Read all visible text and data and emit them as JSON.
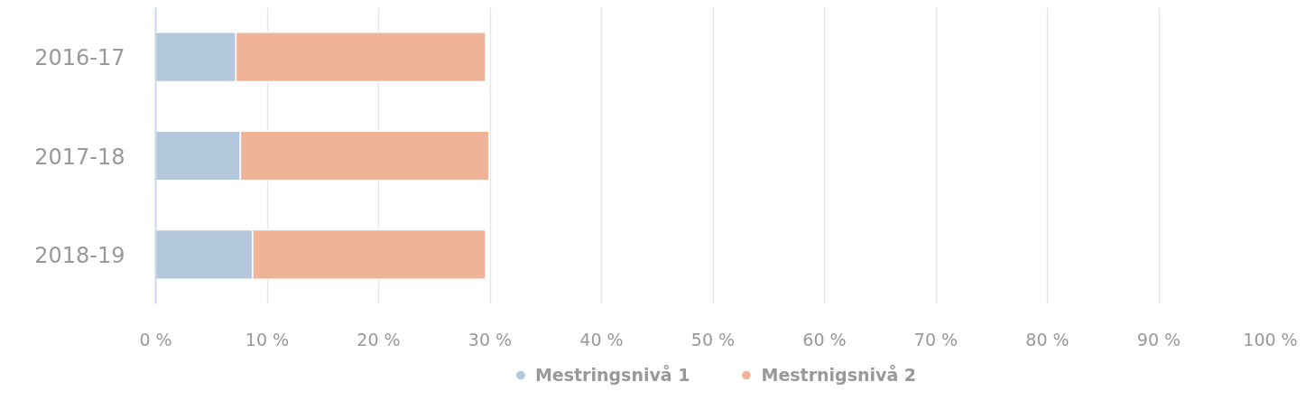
{
  "chart_data": {
    "type": "bar",
    "orientation": "horizontal",
    "stacked": true,
    "categories": [
      "2016-17",
      "2017-18",
      "2018-19"
    ],
    "series": [
      {
        "name": "Mestringsnivå 1",
        "color": "#b3c8dd",
        "values": [
          7.2,
          7.6,
          8.7
        ]
      },
      {
        "name": "Mestrnigsnivå 2",
        "color": "#efb398",
        "values": [
          22.4,
          22.3,
          20.9
        ]
      }
    ],
    "xlim": [
      0,
      100
    ],
    "xticks": [
      {
        "value": 0,
        "label": "0 %"
      },
      {
        "value": 10,
        "label": "10 %"
      },
      {
        "value": 20,
        "label": "20 %"
      },
      {
        "value": 30,
        "label": "30 %"
      },
      {
        "value": 40,
        "label": "40 %"
      },
      {
        "value": 50,
        "label": "50 %"
      },
      {
        "value": 60,
        "label": "60 %"
      },
      {
        "value": 70,
        "label": "70 %"
      },
      {
        "value": 80,
        "label": "80 %"
      },
      {
        "value": 90,
        "label": "90 %"
      },
      {
        "value": 100,
        "label": "100 %"
      }
    ],
    "grid": "x",
    "legend": "bottom"
  }
}
